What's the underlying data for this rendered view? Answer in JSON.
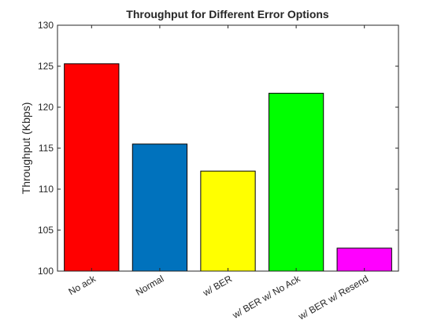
{
  "chart_data": {
    "type": "bar",
    "title": "Throughput for Different Error Options",
    "xlabel": "",
    "ylabel": "Throughput (Kbps)",
    "ylim": [
      100,
      130
    ],
    "yticks": [
      100,
      105,
      110,
      115,
      120,
      125,
      130
    ],
    "categories": [
      "No ack",
      "Normal",
      "w/ BER",
      "w/ BER w/ No Ack",
      "w/ BER w/ Resend"
    ],
    "values": [
      125.3,
      115.5,
      112.2,
      121.7,
      102.8
    ],
    "colors": [
      "#ff0000",
      "#0072bd",
      "#ffff00",
      "#00ff00",
      "#ff00ff"
    ],
    "grid": false,
    "legend": "none"
  }
}
